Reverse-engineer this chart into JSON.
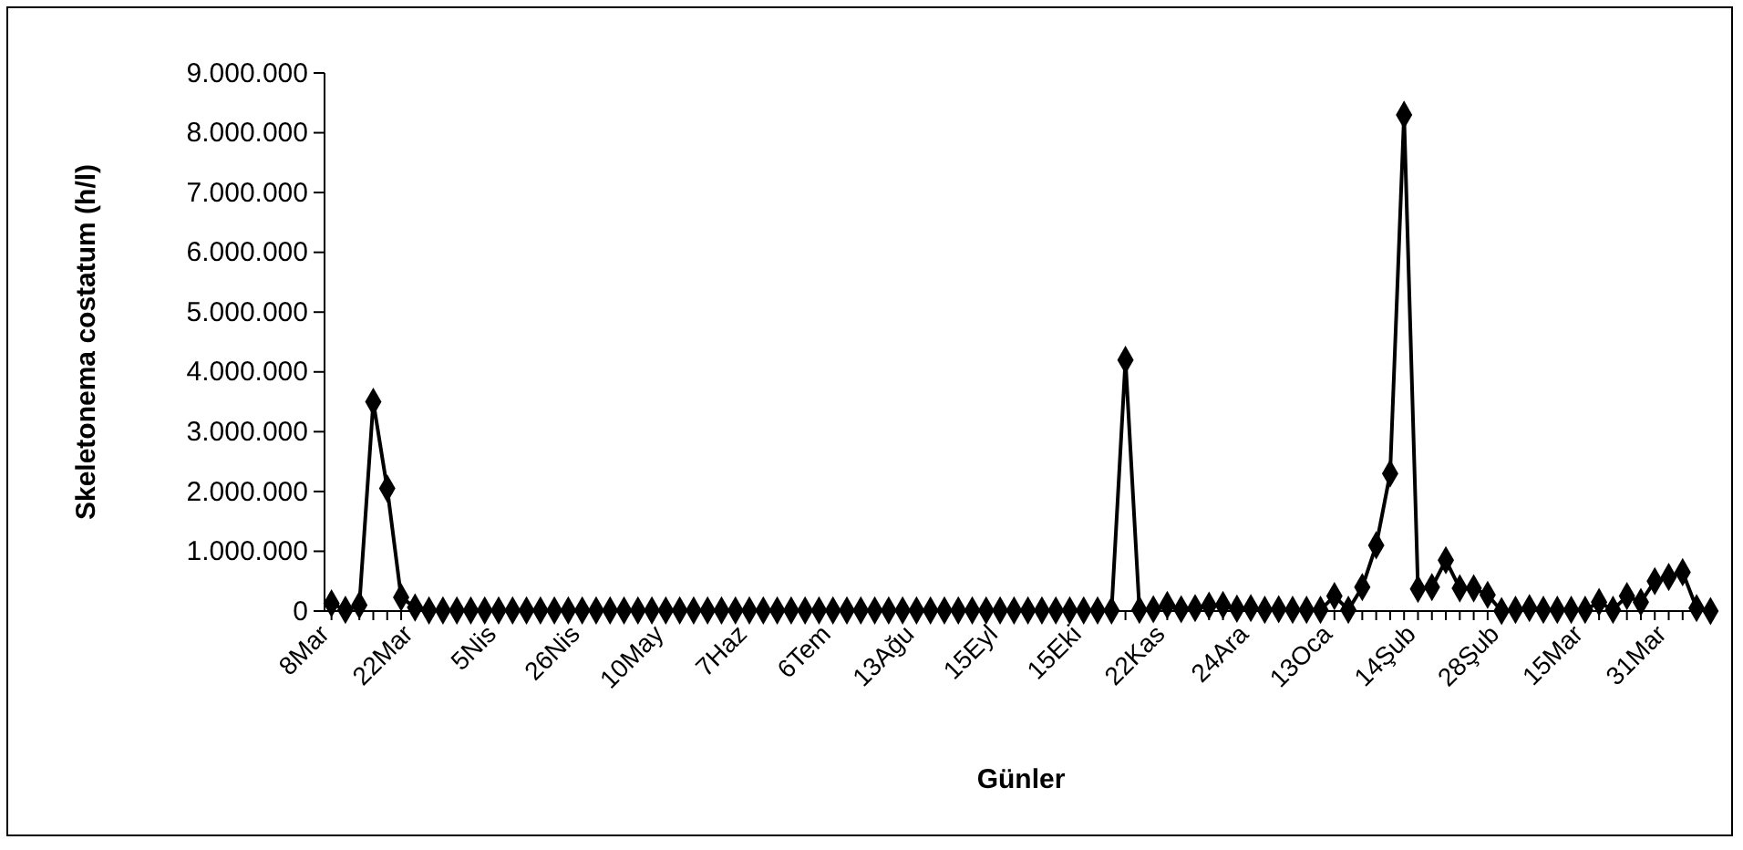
{
  "chart_data": {
    "type": "line",
    "xlabel": "Günler",
    "ylabel": "Skeletonema costatum (h/l)",
    "categories": [
      "8Mar",
      null,
      null,
      null,
      null,
      null,
      "22Mar",
      null,
      null,
      null,
      null,
      null,
      "5Nis",
      null,
      null,
      null,
      null,
      null,
      "26Nis",
      null,
      null,
      null,
      null,
      null,
      "10May",
      null,
      null,
      null,
      null,
      null,
      "7Haz",
      null,
      null,
      null,
      null,
      null,
      "6Tem",
      null,
      null,
      null,
      null,
      null,
      "13Ağu",
      null,
      null,
      null,
      null,
      null,
      "15Eyl",
      null,
      null,
      null,
      null,
      null,
      "15Eki",
      null,
      null,
      null,
      null,
      null,
      "22Kas",
      null,
      null,
      null,
      null,
      null,
      "24Ara",
      null,
      null,
      null,
      null,
      null,
      "13Oca",
      null,
      null,
      null,
      null,
      null,
      "14Şub",
      null,
      null,
      null,
      null,
      null,
      "28Şub",
      null,
      null,
      null,
      null,
      null,
      "15Mar",
      null,
      null,
      null,
      null,
      null,
      "31Mar",
      null,
      null,
      null
    ],
    "series": [
      {
        "color": "#000000",
        "values": [
          130000,
          20000,
          100000,
          3500000,
          2050000,
          230000,
          60000,
          10000,
          10000,
          10000,
          10000,
          10000,
          10000,
          10000,
          10000,
          10000,
          10000,
          10000,
          10000,
          10000,
          10000,
          10000,
          10000,
          10000,
          10000,
          10000,
          10000,
          10000,
          10000,
          10000,
          10000,
          10000,
          10000,
          10000,
          10000,
          10000,
          10000,
          10000,
          10000,
          10000,
          10000,
          10000,
          10000,
          10000,
          10000,
          10000,
          10000,
          10000,
          10000,
          10000,
          10000,
          10000,
          10000,
          10000,
          10000,
          10000,
          10000,
          4200000,
          20000,
          30000,
          100000,
          30000,
          50000,
          90000,
          100000,
          40000,
          50000,
          20000,
          30000,
          20000,
          20000,
          20000,
          250000,
          20000,
          400000,
          1100000,
          2300000,
          8300000,
          370000,
          400000,
          850000,
          380000,
          380000,
          270000,
          0,
          20000,
          50000,
          20000,
          20000,
          20000,
          20000,
          150000,
          20000,
          250000,
          150000,
          500000,
          570000,
          650000,
          50000,
          0
        ]
      }
    ],
    "ylim": [
      0,
      9000000
    ],
    "yticks": [
      {
        "value": 0,
        "label": "0"
      },
      {
        "value": 1000000,
        "label": "1.000.000"
      },
      {
        "value": 2000000,
        "label": "2.000.000"
      },
      {
        "value": 3000000,
        "label": "3.000.000"
      },
      {
        "value": 4000000,
        "label": "4.000.000"
      },
      {
        "value": 5000000,
        "label": "5.000.000"
      },
      {
        "value": 6000000,
        "label": "6.000.000"
      },
      {
        "value": 7000000,
        "label": "7.000.000"
      },
      {
        "value": 8000000,
        "label": "8.000.000"
      },
      {
        "value": 9000000,
        "label": "9.000.000"
      }
    ],
    "marker": "diamond",
    "line_style": "solid"
  }
}
